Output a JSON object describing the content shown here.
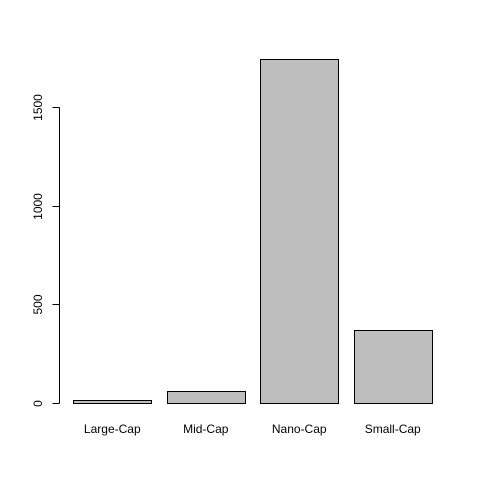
{
  "chart_data": {
    "type": "bar",
    "categories": [
      "Large-Cap",
      "Mid-Cap",
      "Nano-Cap",
      "Small-Cap"
    ],
    "values": [
      15,
      62,
      1743,
      370
    ],
    "title": "",
    "xlabel": "",
    "ylabel": "",
    "ylim": [
      0,
      1743
    ],
    "y_ticks": [
      0,
      500,
      1000,
      1500
    ],
    "y_tick_labels": [
      "0",
      "500",
      "1000",
      "1500"
    ],
    "grid": false,
    "bar_color": "#bebebe",
    "axis_color": "#000000"
  }
}
